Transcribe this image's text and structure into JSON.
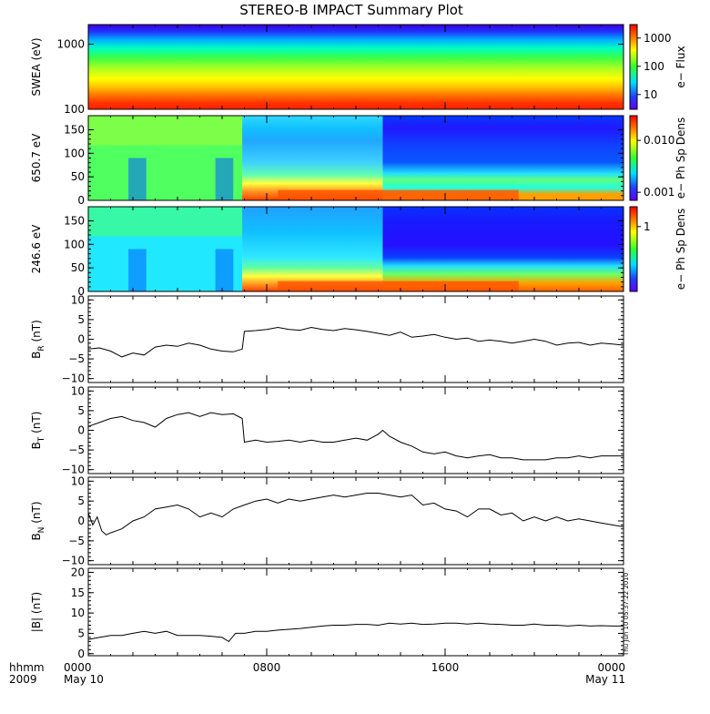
{
  "chart_data": {
    "type": "multi-panel",
    "title": "STEREO-B IMPACT Summary Plot",
    "time_axis": {
      "label_row1": "hhmm",
      "label_row2": "2009",
      "range_hours": [
        0,
        24
      ],
      "ticks": [
        {
          "hour": 0,
          "label": "0000",
          "date": "May 10"
        },
        {
          "hour": 8,
          "label": "0800",
          "date": ""
        },
        {
          "hour": 16,
          "label": "1600",
          "date": ""
        },
        {
          "hour": 24,
          "label": "0000",
          "date": "May 11"
        }
      ]
    },
    "timestamp": "Thu Jun 10 05:37:22 2010",
    "panels": [
      {
        "id": "swea",
        "type": "heatmap",
        "ylabel": "SWEA (eV)",
        "ylog": true,
        "ylim": [
          100,
          2000
        ],
        "yticks": [
          {
            "v": 100,
            "label": "100"
          },
          {
            "v": 1000,
            "label": "1000"
          }
        ],
        "colorbar": {
          "label": "e− Flux",
          "scale": "log",
          "range": [
            3,
            3000
          ],
          "ticks": [
            {
              "v": 10,
              "label": "10"
            },
            {
              "v": 100,
              "label": "100"
            },
            {
              "v": 1000,
              "label": "1000"
            }
          ]
        }
      },
      {
        "id": "pad650",
        "type": "heatmap",
        "ylabel": "650.7 eV",
        "ylim": [
          0,
          180
        ],
        "yticks": [
          {
            "v": 0,
            "label": "0"
          },
          {
            "v": 50,
            "label": "50"
          },
          {
            "v": 100,
            "label": "100"
          },
          {
            "v": 150,
            "label": "150"
          }
        ],
        "colorbar": {
          "label": "e− Ph Sp Dens",
          "scale": "log",
          "range": [
            0.0007,
            0.03
          ],
          "ticks": [
            {
              "v": 0.001,
              "label": "0.001"
            },
            {
              "v": 0.01,
              "label": "0.010"
            }
          ]
        }
      },
      {
        "id": "pad246",
        "type": "heatmap",
        "ylabel": "246.6 eV",
        "ylim": [
          0,
          180
        ],
        "yticks": [
          {
            "v": 0,
            "label": "0"
          },
          {
            "v": 50,
            "label": "50"
          },
          {
            "v": 100,
            "label": "100"
          },
          {
            "v": 150,
            "label": "150"
          }
        ],
        "colorbar": {
          "label": "e− Ph Sp Dens",
          "scale": "log",
          "range": [
            0.05,
            2.5
          ],
          "ticks": [
            {
              "v": 1,
              "label": "1"
            }
          ]
        }
      },
      {
        "id": "br",
        "type": "line",
        "ylabel_main": "B",
        "ylabel_sub": "R",
        "ylabel_unit": " (nT)",
        "ylim": [
          -11,
          11
        ],
        "yticks": [
          {
            "v": -10,
            "label": "−10"
          },
          {
            "v": -5,
            "label": "−5"
          },
          {
            "v": 0,
            "label": "0"
          },
          {
            "v": 5,
            "label": "5"
          },
          {
            "v": 10,
            "label": "10"
          }
        ],
        "x": [
          0,
          0.5,
          1,
          1.5,
          2,
          2.5,
          3,
          3.5,
          4,
          4.5,
          5,
          5.5,
          6,
          6.5,
          6.9,
          7,
          7.5,
          8,
          8.5,
          9,
          9.5,
          10,
          10.5,
          11,
          11.5,
          12,
          12.5,
          13,
          13.5,
          14,
          14.5,
          15,
          15.5,
          16,
          16.5,
          17,
          17.5,
          18,
          18.5,
          19,
          19.5,
          20,
          20.5,
          21,
          21.5,
          22,
          22.5,
          23,
          23.5,
          24
        ],
        "y": [
          -2.5,
          -2.2,
          -3,
          -4.5,
          -3.5,
          -4,
          -2,
          -1.5,
          -1.8,
          -1,
          -1.5,
          -2.5,
          -3,
          -3.2,
          -2.5,
          2,
          2.2,
          2.5,
          3,
          2.5,
          2.3,
          3,
          2.5,
          2.2,
          2.7,
          2.4,
          2,
          1.5,
          1,
          1.8,
          0.5,
          0.8,
          1.2,
          0.5,
          0,
          0.3,
          -0.5,
          -0.2,
          -0.5,
          -1,
          -0.5,
          0,
          -0.5,
          -1.5,
          -1,
          -0.8,
          -1.5,
          -1,
          -1.2,
          -1.5
        ]
      },
      {
        "id": "bt",
        "type": "line",
        "ylabel_main": "B",
        "ylabel_sub": "T",
        "ylabel_unit": " (nT)",
        "ylim": [
          -11,
          11
        ],
        "yticks": [
          {
            "v": -10,
            "label": "−10"
          },
          {
            "v": -5,
            "label": "−5"
          },
          {
            "v": 0,
            "label": "0"
          },
          {
            "v": 5,
            "label": "5"
          },
          {
            "v": 10,
            "label": "10"
          }
        ],
        "x": [
          0,
          0.5,
          1,
          1.5,
          2,
          2.5,
          3,
          3.5,
          4,
          4.5,
          5,
          5.5,
          6,
          6.5,
          6.9,
          7,
          7.5,
          8,
          8.5,
          9,
          9.5,
          10,
          10.5,
          11,
          11.5,
          12,
          12.5,
          13,
          13.2,
          13.5,
          14,
          14.5,
          15,
          15.5,
          16,
          16.5,
          17,
          17.5,
          18,
          18.5,
          19,
          19.5,
          20,
          20.5,
          21,
          21.5,
          22,
          22.5,
          23,
          23.5,
          24
        ],
        "y": [
          1,
          2,
          3,
          3.5,
          2.5,
          2,
          0.8,
          3,
          4,
          4.5,
          3.5,
          4.5,
          4,
          4.2,
          3,
          -3,
          -2.5,
          -3,
          -2.8,
          -2.5,
          -3,
          -2.5,
          -3,
          -3,
          -2.5,
          -2,
          -2.5,
          -1,
          0,
          -1.5,
          -3,
          -4,
          -5.5,
          -6,
          -5.5,
          -6.5,
          -7,
          -6.5,
          -6.2,
          -7,
          -7,
          -7.5,
          -7.5,
          -7.5,
          -7,
          -7,
          -6.5,
          -7,
          -6.5,
          -6.5,
          -6.5
        ]
      },
      {
        "id": "bn",
        "type": "line",
        "ylabel_main": "B",
        "ylabel_sub": "N",
        "ylabel_unit": " (nT)",
        "ylim": [
          -11,
          11
        ],
        "yticks": [
          {
            "v": -10,
            "label": "−10"
          },
          {
            "v": -5,
            "label": "−5"
          },
          {
            "v": 0,
            "label": "0"
          },
          {
            "v": 5,
            "label": "5"
          },
          {
            "v": 10,
            "label": "10"
          }
        ],
        "x": [
          0,
          0.2,
          0.4,
          0.6,
          0.8,
          1,
          1.5,
          2,
          2.5,
          3,
          3.5,
          4,
          4.5,
          5,
          5.5,
          6,
          6.5,
          7,
          7.5,
          8,
          8.5,
          9,
          9.5,
          10,
          10.5,
          11,
          11.5,
          12,
          12.5,
          13,
          13.5,
          14,
          14.5,
          15,
          15.5,
          16,
          16.5,
          17,
          17.5,
          18,
          18.5,
          19,
          19.5,
          20,
          20.5,
          21,
          21.5,
          22,
          22.5,
          23,
          23.5,
          24
        ],
        "y": [
          2,
          -1,
          1,
          -2.5,
          -3.5,
          -3,
          -2,
          0,
          1,
          3,
          3.5,
          4,
          3,
          1,
          2,
          1,
          3,
          4,
          5,
          5.5,
          4.5,
          5.5,
          5,
          5.5,
          6,
          6.5,
          6,
          6.5,
          7,
          7,
          6.5,
          6,
          6.5,
          4,
          4.5,
          3,
          2.5,
          1,
          3,
          3,
          1.5,
          2,
          0,
          1,
          0,
          1,
          0,
          0.5,
          0,
          -0.5,
          -1,
          -1.5
        ]
      },
      {
        "id": "bmag",
        "type": "line",
        "ylabel_main": "|B| (nT)",
        "ylim": [
          -0.5,
          21
        ],
        "yticks": [
          {
            "v": 0,
            "label": "0"
          },
          {
            "v": 5,
            "label": "5"
          },
          {
            "v": 10,
            "label": "10"
          },
          {
            "v": 15,
            "label": "15"
          },
          {
            "v": 20,
            "label": "20"
          }
        ],
        "x": [
          0,
          0.5,
          1,
          1.5,
          2,
          2.5,
          3,
          3.5,
          4,
          4.5,
          5,
          5.5,
          6,
          6.3,
          6.6,
          7,
          7.5,
          8,
          8.5,
          9,
          9.5,
          10,
          10.5,
          11,
          11.5,
          12,
          12.5,
          13,
          13.5,
          14,
          14.5,
          15,
          15.5,
          16,
          16.5,
          17,
          17.5,
          18,
          18.5,
          19,
          19.5,
          20,
          20.5,
          21,
          21.5,
          22,
          22.5,
          23,
          23.5,
          24
        ],
        "y": [
          3.5,
          4,
          4.5,
          4.5,
          5,
          5.5,
          5,
          5.5,
          4.5,
          4.5,
          4.5,
          4.3,
          4,
          3,
          5,
          5,
          5.5,
          5.5,
          5.8,
          6,
          6.2,
          6.5,
          6.8,
          7,
          7,
          7.2,
          7.2,
          7,
          7.5,
          7.3,
          7.5,
          7.2,
          7.3,
          7.5,
          7.5,
          7.3,
          7.5,
          7.3,
          7.2,
          7,
          7,
          7.3,
          7,
          7,
          6.8,
          7,
          6.8,
          6.9,
          6.8,
          6.8
        ]
      }
    ]
  }
}
